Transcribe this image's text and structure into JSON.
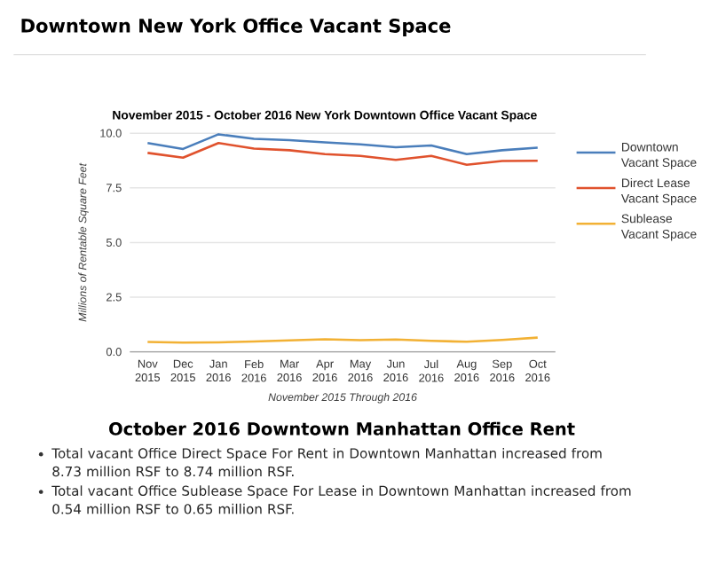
{
  "chart_data": {
    "type": "line",
    "title": "Downtown New York Office Vacant Space",
    "subtitle": "November 2015 - October 2016 New York Downtown Office Vacant Space",
    "xlabel": "November 2015 Through 2016",
    "ylabel": "Millions of Rentable Square Feet",
    "categories": [
      "Nov 2015",
      "Dec 2015",
      "Jan 2016",
      "Feb 2016",
      "Mar 2016",
      "Apr 2016",
      "May 2016",
      "Jun 2016",
      "Jul 2016",
      "Aug 2016",
      "Sep 2016",
      "Oct 2016"
    ],
    "series": [
      {
        "name": "Downtown Vacant Space",
        "color": "#4a7ebb",
        "values": [
          9.55,
          9.28,
          9.95,
          9.74,
          9.68,
          9.58,
          9.49,
          9.36,
          9.44,
          9.04,
          9.22,
          9.34
        ]
      },
      {
        "name": "Direct Lease Vacant Space",
        "color": "#e0522d",
        "values": [
          9.1,
          8.88,
          9.55,
          9.3,
          9.22,
          9.04,
          8.96,
          8.78,
          8.96,
          8.56,
          8.73,
          8.74
        ]
      },
      {
        "name": "Sublease Vacant Space",
        "color": "#f2b134",
        "values": [
          0.45,
          0.42,
          0.43,
          0.47,
          0.52,
          0.57,
          0.53,
          0.56,
          0.5,
          0.46,
          0.54,
          0.65
        ]
      }
    ],
    "ylim": [
      0,
      10
    ],
    "yticks": [
      {
        "value": 0,
        "label": "0.0"
      },
      {
        "value": 2.5,
        "label": "2.5"
      },
      {
        "value": 5,
        "label": "5.0"
      },
      {
        "value": 7.5,
        "label": "7.5"
      },
      {
        "value": 10,
        "label": "10.0"
      }
    ],
    "grid": "y",
    "legend": "right",
    "marker": "none",
    "line_style": "solid",
    "annotations": [
      "October 2016 Downtown Manhattan Office Rent",
      "Total vacant Office Direct Space For Rent in Downtown Manhattan increased from 8.73 million RSF to 8.74 million RSF.",
      "Total vacant Office Sublease Space For Lease in Downtown Manhattan increased from 0.54 million RSF to 0.65 million RSF."
    ]
  }
}
